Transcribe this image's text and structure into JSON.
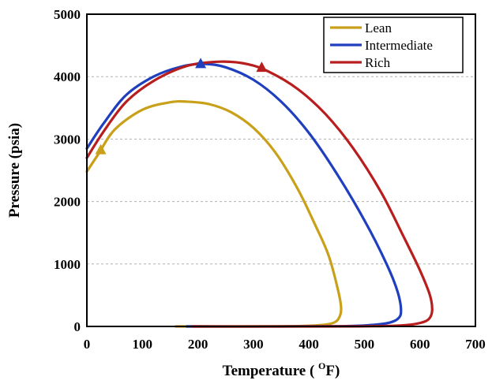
{
  "chart_data": {
    "type": "line",
    "xlabel_prefix": "Temperature ( ",
    "xlabel_sup": "O",
    "xlabel_suffix": "F)",
    "ylabel": "Pressure (psia)",
    "xlim": [
      0,
      700
    ],
    "ylim": [
      0,
      5000
    ],
    "xticks": [
      0,
      100,
      200,
      300,
      400,
      500,
      600,
      700
    ],
    "yticks": [
      0,
      1000,
      2000,
      3000,
      4000,
      5000
    ],
    "grid": "horizontal dashed",
    "legend_position": "top-right",
    "series": [
      {
        "name": "Lean",
        "color": "#C9A01A",
        "critical_point": [
          25,
          2820
        ],
        "dew_curve": [
          [
            0,
            2480
          ],
          [
            20,
            2750
          ],
          [
            50,
            3150
          ],
          [
            100,
            3470
          ],
          [
            150,
            3590
          ],
          [
            180,
            3600
          ],
          [
            220,
            3560
          ],
          [
            260,
            3430
          ],
          [
            300,
            3180
          ],
          [
            340,
            2780
          ],
          [
            380,
            2200
          ],
          [
            410,
            1650
          ],
          [
            435,
            1150
          ],
          [
            452,
            600
          ],
          [
            458,
            300
          ],
          [
            455,
            150
          ],
          [
            445,
            60
          ],
          [
            420,
            20
          ],
          [
            380,
            5
          ],
          [
            300,
            0
          ],
          [
            160,
            0
          ]
        ]
      },
      {
        "name": "Intermediate",
        "color": "#1F3FBF",
        "critical_point": [
          205,
          4200
        ],
        "dew_curve": [
          [
            0,
            2850
          ],
          [
            30,
            3250
          ],
          [
            70,
            3700
          ],
          [
            120,
            4000
          ],
          [
            170,
            4160
          ],
          [
            210,
            4205
          ],
          [
            250,
            4150
          ],
          [
            300,
            3950
          ],
          [
            350,
            3600
          ],
          [
            400,
            3100
          ],
          [
            450,
            2450
          ],
          [
            500,
            1700
          ],
          [
            540,
            1000
          ],
          [
            560,
            550
          ],
          [
            566,
            250
          ],
          [
            560,
            120
          ],
          [
            540,
            50
          ],
          [
            500,
            15
          ],
          [
            450,
            4
          ],
          [
            350,
            0
          ],
          [
            180,
            0
          ]
        ]
      },
      {
        "name": "Rich",
        "color": "#B81E1E",
        "critical_point": [
          315,
          4140
        ],
        "dew_curve": [
          [
            0,
            2700
          ],
          [
            30,
            3120
          ],
          [
            70,
            3590
          ],
          [
            120,
            3930
          ],
          [
            180,
            4170
          ],
          [
            240,
            4240
          ],
          [
            290,
            4200
          ],
          [
            330,
            4070
          ],
          [
            380,
            3800
          ],
          [
            430,
            3400
          ],
          [
            480,
            2850
          ],
          [
            530,
            2150
          ],
          [
            570,
            1450
          ],
          [
            600,
            900
          ],
          [
            618,
            500
          ],
          [
            622,
            250
          ],
          [
            615,
            110
          ],
          [
            595,
            45
          ],
          [
            560,
            12
          ],
          [
            500,
            3
          ],
          [
            400,
            0
          ],
          [
            190,
            0
          ]
        ]
      }
    ]
  }
}
